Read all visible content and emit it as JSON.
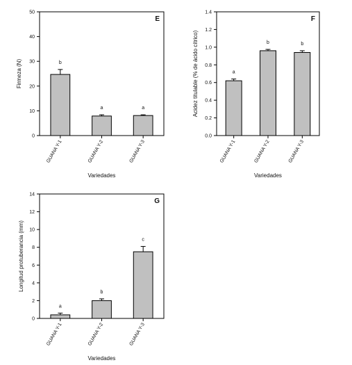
{
  "chart_data": [
    {
      "type": "bar",
      "panel": "E",
      "categories": [
        "GUANA Y-1",
        "GUANA Y-2",
        "GUANA Y-3"
      ],
      "values": [
        24.7,
        7.9,
        8.1
      ],
      "errors": [
        2.0,
        0.5,
        0.3
      ],
      "significance": [
        "b",
        "a",
        "a"
      ],
      "title": "",
      "xlabel": "Variedades",
      "ylabel": "Firmeza (N)",
      "ylim": [
        0,
        50
      ],
      "yticks": [
        0,
        10,
        20,
        30,
        40,
        50
      ],
      "ytick_labels": [
        "0",
        "10",
        "20",
        "30",
        "40",
        "50"
      ],
      "grid": false,
      "colors": {
        "bar": "#c0c0c0",
        "stroke": "#000000"
      }
    },
    {
      "type": "bar",
      "panel": "F",
      "categories": [
        "GUANA Y-1",
        "GUANA Y-2",
        "GUANA Y-3"
      ],
      "values": [
        0.62,
        0.96,
        0.94
      ],
      "errors": [
        0.02,
        0.015,
        0.02
      ],
      "significance": [
        "a",
        "b",
        "b"
      ],
      "title": "",
      "xlabel": "Variedades",
      "ylabel": "Acidez titulable (% de ácido cítrico)",
      "ylim": [
        0,
        1.4
      ],
      "yticks": [
        0,
        0.2,
        0.4,
        0.6,
        0.8,
        1.0,
        1.2,
        1.4
      ],
      "ytick_labels": [
        "0.0",
        "0.2",
        "0.4",
        "0.6",
        "0.8",
        "1.0",
        "1.2",
        "1.4"
      ],
      "grid": false,
      "colors": {
        "bar": "#c0c0c0",
        "stroke": "#000000"
      }
    },
    {
      "type": "bar",
      "panel": "G",
      "categories": [
        "GUANA Y-1",
        "GUANA Y-2",
        "GUANA Y-3"
      ],
      "values": [
        0.4,
        2.0,
        7.5
      ],
      "errors": [
        0.2,
        0.2,
        0.6
      ],
      "significance": [
        "a",
        "b",
        "c"
      ],
      "title": "",
      "xlabel": "Variedades",
      "ylabel": "Longitud protuberancia (mm)",
      "ylim": [
        0,
        14
      ],
      "yticks": [
        0,
        2,
        4,
        6,
        8,
        10,
        12,
        14
      ],
      "ytick_labels": [
        "0",
        "2",
        "4",
        "6",
        "8",
        "10",
        "12",
        "14"
      ],
      "grid": false,
      "colors": {
        "bar": "#c0c0c0",
        "stroke": "#000000"
      }
    }
  ]
}
